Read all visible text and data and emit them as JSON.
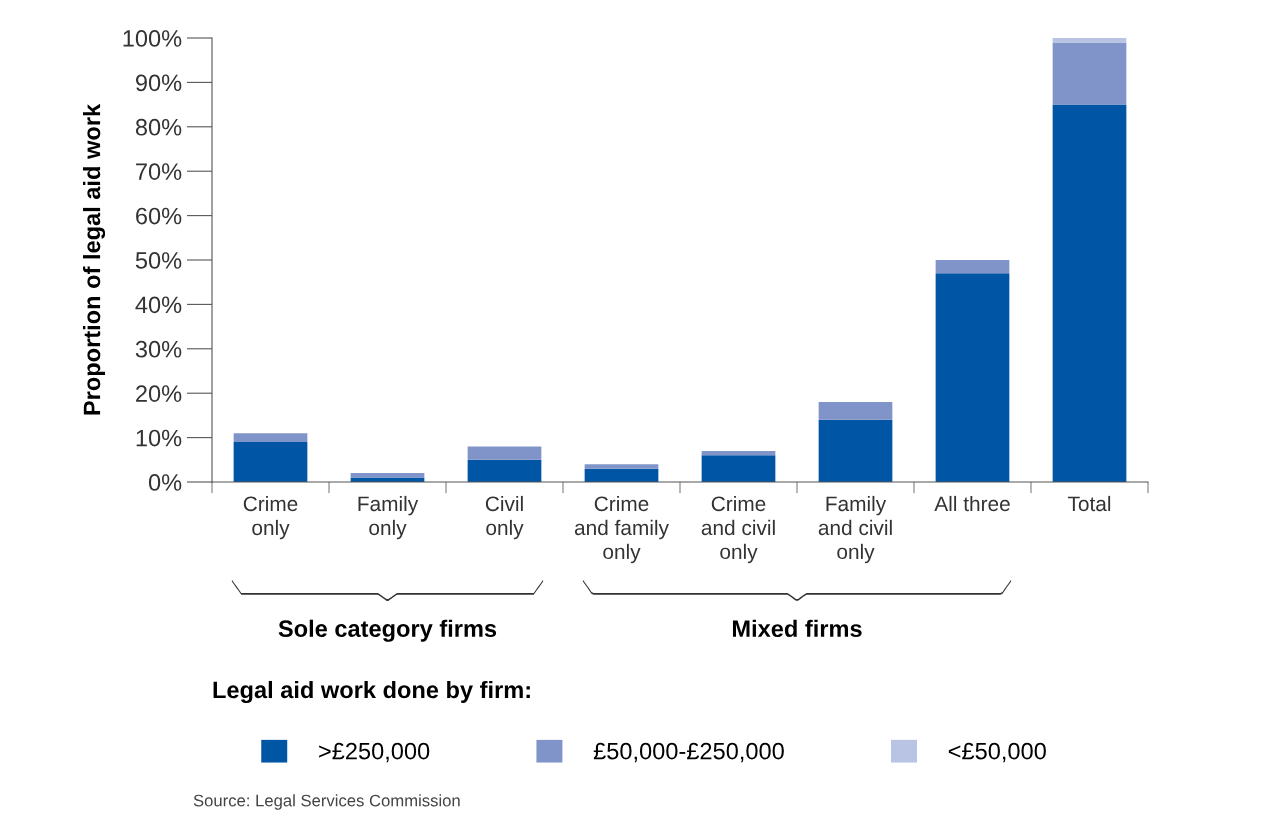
{
  "chart_data": {
    "type": "bar",
    "stacked": true,
    "ylabel": "Proportion of legal aid work",
    "legend_title": "Legal aid work done by firm:",
    "legend": "bottom",
    "categories": [
      "Crime\nonly",
      "Family\nonly",
      "Civil\nonly",
      "Crime\nand family\nonly",
      "Crime\nand civil\nonly",
      "Family\nand civil\nonly",
      "All three",
      "Total"
    ],
    "series": [
      {
        "name": ">£250,000",
        "color": "#0055a5",
        "values": [
          9,
          1,
          5,
          3,
          6,
          14,
          47,
          85
        ]
      },
      {
        "name": "£50,000-£250,000",
        "color": "#8194c9",
        "values": [
          2,
          1,
          3,
          1,
          1,
          4,
          3,
          14
        ]
      },
      {
        "name": "<£50,000",
        "color": "#b9c3e3",
        "values": [
          0,
          0,
          0,
          0,
          0,
          0,
          0,
          1
        ]
      }
    ],
    "ylim": [
      0,
      100
    ],
    "yticks": [
      {
        "value": 0,
        "label": "0%"
      },
      {
        "value": 10,
        "label": "10%"
      },
      {
        "value": 20,
        "label": "20%"
      },
      {
        "value": 30,
        "label": "30%"
      },
      {
        "value": 40,
        "label": "40%"
      },
      {
        "value": 50,
        "label": "50%"
      },
      {
        "value": 60,
        "label": "60%"
      },
      {
        "value": 70,
        "label": "70%"
      },
      {
        "value": 80,
        "label": "80%"
      },
      {
        "value": 90,
        "label": "90%"
      },
      {
        "value": 100,
        "label": "100%"
      }
    ],
    "grid": false,
    "annotations": [
      "Sole category firms",
      "Mixed firms",
      "Source: Legal Services Commission"
    ]
  }
}
